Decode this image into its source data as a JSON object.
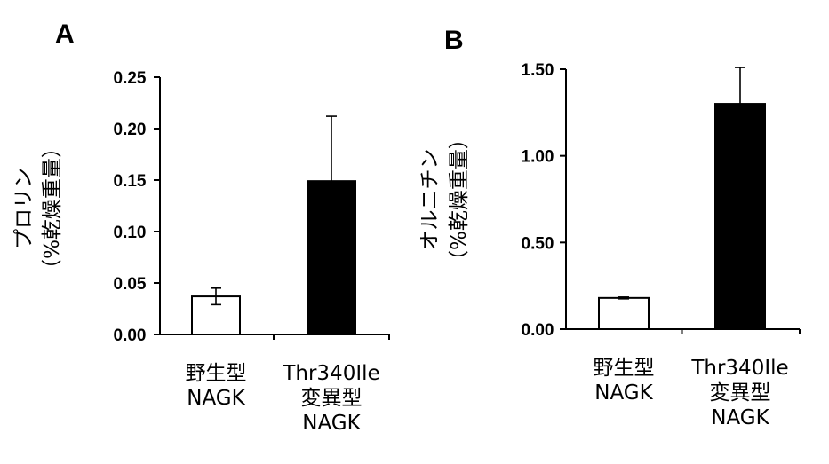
{
  "chart_data": [
    {
      "type": "bar",
      "panel": "A",
      "ylabel_line1": "プロリン",
      "ylabel_line2": "（%乾燥重量）",
      "ylim": [
        0,
        0.25
      ],
      "yticks": [
        "0.00",
        "0.05",
        "0.10",
        "0.15",
        "0.20",
        "0.25"
      ],
      "categories": [
        [
          "野生型",
          "NAGK"
        ],
        [
          "Thr340Ile",
          "変異型",
          "NAGK"
        ]
      ],
      "values": [
        0.037,
        0.149
      ],
      "errors": [
        0.008,
        0.063
      ],
      "bar_colors": [
        "#ffffff",
        "#000000"
      ]
    },
    {
      "type": "bar",
      "panel": "B",
      "ylabel_line1": "オルニチン",
      "ylabel_line2": "（%乾燥重量）",
      "ylim": [
        0,
        1.5
      ],
      "yticks": [
        "0.00",
        "0.50",
        "1.00",
        "1.50"
      ],
      "categories": [
        [
          "野生型",
          "NAGK"
        ],
        [
          "Thr340Ile",
          "変異型",
          "NAGK"
        ]
      ],
      "values": [
        0.18,
        1.3
      ],
      "errors": [
        0.005,
        0.21
      ],
      "bar_colors": [
        "#ffffff",
        "#000000"
      ]
    }
  ]
}
